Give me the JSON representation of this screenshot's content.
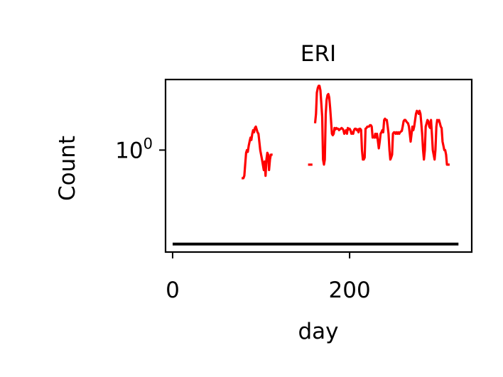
{
  "chart_data": {
    "type": "line",
    "title": "ERI",
    "xlabel": "day",
    "ylabel": "Count",
    "xlim": [
      -8,
      338
    ],
    "yscale": "log",
    "ylim": [
      0.32,
      2.2
    ],
    "xticks": [
      {
        "value": 0,
        "label": "0"
      },
      {
        "value": 200,
        "label": "200"
      }
    ],
    "yticks": [
      {
        "value": 1,
        "label_base": "10",
        "label_exp": "0"
      }
    ],
    "grid": false,
    "legend": "none",
    "series": [
      {
        "color": "#ff0000",
        "segments": [
          [
            [
              78,
              0.73
            ],
            [
              80,
              0.73
            ],
            [
              81,
              0.75
            ],
            [
              82,
              0.85
            ],
            [
              83,
              0.97
            ],
            [
              84,
              1.0
            ],
            [
              85,
              0.98
            ],
            [
              86,
              1.05
            ],
            [
              87,
              1.1
            ],
            [
              88,
              1.15
            ],
            [
              89,
              1.12
            ],
            [
              90,
              1.2
            ],
            [
              91,
              1.25
            ],
            [
              92,
              1.22
            ],
            [
              93,
              1.28
            ],
            [
              94,
              1.3
            ],
            [
              95,
              1.26
            ],
            [
              96,
              1.22
            ],
            [
              97,
              1.2
            ],
            [
              98,
              1.1
            ],
            [
              99,
              1.0
            ],
            [
              100,
              0.95
            ],
            [
              101,
              0.9
            ],
            [
              102,
              0.85
            ],
            [
              103,
              0.8
            ],
            [
              104,
              0.88
            ],
            [
              105,
              0.75
            ],
            [
              106,
              0.9
            ],
            [
              107,
              0.97
            ],
            [
              108,
              0.95
            ],
            [
              109,
              0.8
            ],
            [
              110,
              0.9
            ],
            [
              111,
              0.95
            ],
            [
              112,
              0.95
            ],
            [
              113,
              0.95
            ]
          ],
          [
            [
              153,
              0.85
            ],
            [
              154,
              0.85
            ],
            [
              155,
              0.85
            ],
            [
              156,
              0.85
            ],
            [
              157,
              0.85
            ],
            [
              158,
              0.85
            ]
          ],
          [
            [
              161,
              1.35
            ],
            [
              162,
              1.5
            ],
            [
              163,
              1.9
            ],
            [
              164,
              2.0
            ],
            [
              165,
              2.05
            ],
            [
              166,
              2.05
            ],
            [
              167,
              1.95
            ],
            [
              168,
              1.7
            ],
            [
              169,
              1.45
            ],
            [
              170,
              0.9
            ],
            [
              171,
              0.85
            ],
            [
              172,
              0.9
            ],
            [
              173,
              1.5
            ],
            [
              174,
              1.75
            ],
            [
              175,
              1.85
            ],
            [
              176,
              1.87
            ],
            [
              177,
              1.8
            ],
            [
              178,
              1.6
            ],
            [
              179,
              1.4
            ],
            [
              180,
              1.2
            ],
            [
              181,
              1.18
            ],
            [
              182,
              1.2
            ],
            [
              183,
              1.28
            ],
            [
              184,
              1.26
            ],
            [
              185,
              1.28
            ],
            [
              186,
              1.27
            ],
            [
              187,
              1.27
            ],
            [
              188,
              1.25
            ],
            [
              189,
              1.26
            ],
            [
              190,
              1.27
            ],
            [
              191,
              1.28
            ],
            [
              192,
              1.27
            ],
            [
              193,
              1.25
            ],
            [
              194,
              1.2
            ],
            [
              195,
              1.22
            ],
            [
              196,
              1.25
            ],
            [
              197,
              1.2
            ],
            [
              198,
              1.28
            ],
            [
              199,
              1.26
            ],
            [
              200,
              1.27
            ],
            [
              201,
              1.25
            ],
            [
              202,
              1.2
            ],
            [
              203,
              1.22
            ],
            [
              204,
              1.2
            ],
            [
              205,
              1.25
            ],
            [
              206,
              1.27
            ],
            [
              207,
              1.27
            ],
            [
              208,
              1.25
            ],
            [
              209,
              1.26
            ],
            [
              210,
              1.22
            ],
            [
              211,
              1.27
            ],
            [
              212,
              1.27
            ],
            [
              213,
              1.25
            ],
            [
              214,
              1.0
            ],
            [
              215,
              0.9
            ],
            [
              216,
              0.9
            ],
            [
              217,
              0.92
            ],
            [
              218,
              1.27
            ],
            [
              219,
              1.28
            ],
            [
              220,
              1.3
            ],
            [
              221,
              1.3
            ],
            [
              222,
              1.3
            ],
            [
              223,
              1.32
            ],
            [
              224,
              1.32
            ],
            [
              225,
              1.3
            ],
            [
              226,
              1.15
            ],
            [
              227,
              1.16
            ],
            [
              228,
              1.15
            ],
            [
              229,
              1.2
            ],
            [
              230,
              1.15
            ],
            [
              231,
              1.2
            ],
            [
              232,
              1.1
            ],
            [
              233,
              1.02
            ],
            [
              234,
              1.1
            ],
            [
              235,
              1.2
            ],
            [
              236,
              1.22
            ],
            [
              237,
              1.25
            ],
            [
              238,
              1.22
            ],
            [
              239,
              1.4
            ],
            [
              240,
              1.42
            ],
            [
              241,
              1.4
            ],
            [
              242,
              1.4
            ],
            [
              243,
              1.3
            ],
            [
              244,
              1.2
            ],
            [
              245,
              1.0
            ],
            [
              246,
              0.9
            ],
            [
              247,
              0.92
            ],
            [
              248,
              0.95
            ],
            [
              249,
              1.2
            ],
            [
              250,
              1.22
            ],
            [
              251,
              1.22
            ],
            [
              252,
              1.2
            ],
            [
              253,
              1.22
            ],
            [
              254,
              1.2
            ],
            [
              255,
              1.22
            ],
            [
              256,
              1.2
            ],
            [
              257,
              1.22
            ],
            [
              258,
              1.23
            ],
            [
              259,
              1.24
            ],
            [
              260,
              1.3
            ],
            [
              261,
              1.38
            ],
            [
              262,
              1.4
            ],
            [
              263,
              1.4
            ],
            [
              264,
              1.38
            ],
            [
              265,
              1.36
            ],
            [
              266,
              1.35
            ],
            [
              267,
              1.3
            ],
            [
              268,
              1.2
            ],
            [
              269,
              1.1
            ],
            [
              270,
              1.2
            ],
            [
              271,
              1.3
            ],
            [
              272,
              1.25
            ],
            [
              273,
              1.3
            ],
            [
              274,
              1.4
            ],
            [
              275,
              1.5
            ],
            [
              276,
              1.55
            ],
            [
              277,
              1.53
            ],
            [
              278,
              1.5
            ],
            [
              279,
              1.55
            ],
            [
              280,
              1.5
            ],
            [
              281,
              1.35
            ],
            [
              282,
              1.2
            ],
            [
              283,
              1.0
            ],
            [
              284,
              0.9
            ],
            [
              285,
              1.0
            ],
            [
              286,
              1.3
            ],
            [
              287,
              1.35
            ],
            [
              288,
              1.4
            ],
            [
              289,
              1.38
            ],
            [
              290,
              1.3
            ],
            [
              291,
              1.28
            ],
            [
              292,
              1.4
            ],
            [
              293,
              1.2
            ],
            [
              294,
              1.0
            ],
            [
              295,
              0.95
            ],
            [
              296,
              0.9
            ],
            [
              297,
              1.0
            ],
            [
              298,
              1.3
            ],
            [
              299,
              1.4
            ],
            [
              300,
              1.38
            ],
            [
              301,
              1.4
            ],
            [
              302,
              1.35
            ],
            [
              303,
              1.3
            ],
            [
              304,
              1.28
            ],
            [
              305,
              1.1
            ],
            [
              306,
              1.05
            ],
            [
              307,
              1.0
            ],
            [
              308,
              1.0
            ],
            [
              309,
              0.95
            ],
            [
              310,
              0.85
            ],
            [
              311,
              0.85
            ],
            [
              312,
              0.85
            ],
            [
              313,
              0.85
            ]
          ]
        ]
      },
      {
        "color": "#000000",
        "segments": [
          [
            [
              0,
              0.35
            ],
            [
              323,
              0.35
            ]
          ]
        ]
      }
    ]
  }
}
